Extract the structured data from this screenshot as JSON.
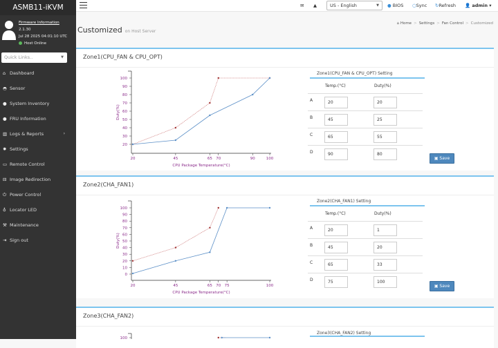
{
  "sidebar": {
    "brand": "ASMB11-iKVM",
    "firmware_link": "Firmware Information",
    "version": "2.1.30",
    "datetime": "Jul 28 2025 04:01:10 UTC",
    "status": "Host Online",
    "quick_links_placeholder": "Quick Links..",
    "items": [
      {
        "label": "Dashboard",
        "icon": "home-icon"
      },
      {
        "label": "Sensor",
        "icon": "gauge-icon"
      },
      {
        "label": "System Inventory",
        "icon": "info-icon"
      },
      {
        "label": "FRU Information",
        "icon": "info-icon"
      },
      {
        "label": "Logs & Reports",
        "icon": "chart-icon",
        "has_submenu": true
      },
      {
        "label": "Settings",
        "icon": "gear-icon"
      },
      {
        "label": "Remote Control",
        "icon": "monitor-icon"
      },
      {
        "label": "Image Redirection",
        "icon": "drive-icon"
      },
      {
        "label": "Power Control",
        "icon": "power-icon"
      },
      {
        "label": "Locator LED",
        "icon": "bulb-icon"
      },
      {
        "label": "Maintenance",
        "icon": "wrench-icon"
      },
      {
        "label": "Sign out",
        "icon": "sign-out-icon"
      }
    ]
  },
  "topbar": {
    "language": "US - English",
    "bios": "BIOS",
    "sync": "Sync",
    "refresh": "Refresh",
    "user": "admin"
  },
  "page": {
    "title": "Customized",
    "subtitle": "on Host Server",
    "breadcrumb": [
      "Home",
      "Settings",
      "Fan Control",
      "Customized"
    ]
  },
  "colors": {
    "accent": "#7cc4ee",
    "series_blue": "#5b8fc7",
    "series_red": "#a03030",
    "axis_text": "#8a2a8a",
    "save_button": "#4e88bd"
  },
  "common": {
    "temp_header": "Temp.(°C)",
    "duty_header": "Duty(%)",
    "save_label": "Save",
    "row_labels": [
      "A",
      "B",
      "C",
      "D"
    ]
  },
  "zones": [
    {
      "title": "Zone1(CPU_FAN & CPU_OPT)",
      "setting_title": "Zone1(CPU_FAN & CPU_OPT) Setting",
      "rows": [
        {
          "temp": "20",
          "duty": "20"
        },
        {
          "temp": "45",
          "duty": "25"
        },
        {
          "temp": "65",
          "duty": "55"
        },
        {
          "temp": "90",
          "duty": "80"
        }
      ]
    },
    {
      "title": "Zone2(CHA_FAN1)",
      "setting_title": "Zone2(CHA_FAN1) Setting",
      "rows": [
        {
          "temp": "20",
          "duty": "1"
        },
        {
          "temp": "45",
          "duty": "20"
        },
        {
          "temp": "65",
          "duty": "33"
        },
        {
          "temp": "75",
          "duty": "100"
        }
      ]
    },
    {
      "title": "Zone3(CHA_FAN2)",
      "setting_title": "Zone3(CHA_FAN2) Setting"
    }
  ],
  "chart_data": [
    {
      "type": "line",
      "xlabel": "CPU Package Temperature(°C)",
      "ylabel": "Duty(%)",
      "xlim": [
        20,
        100
      ],
      "ylim": [
        15,
        105
      ],
      "xticks": [
        20,
        45,
        65,
        70,
        90,
        100
      ],
      "yticks": [
        20,
        30,
        40,
        50,
        60,
        70,
        80,
        90,
        100
      ],
      "series": [
        {
          "style": "solid",
          "color": "#5b8fc7",
          "points": [
            [
              20,
              20
            ],
            [
              45,
              25
            ],
            [
              65,
              55
            ],
            [
              90,
              80
            ],
            [
              100,
              100
            ]
          ]
        },
        {
          "style": "dotted",
          "color": "#a03030",
          "points": [
            [
              20,
              20
            ],
            [
              45,
              40
            ],
            [
              65,
              70
            ],
            [
              70,
              100
            ],
            [
              100,
              100
            ]
          ]
        }
      ]
    },
    {
      "type": "line",
      "xlabel": "CPU Package Temperature(°C)",
      "ylabel": "Duty(%)",
      "xlim": [
        20,
        100
      ],
      "ylim": [
        -5,
        105
      ],
      "xticks": [
        20,
        45,
        65,
        70,
        75,
        100
      ],
      "yticks": [
        0,
        10,
        20,
        30,
        40,
        50,
        60,
        70,
        80,
        90,
        100
      ],
      "series": [
        {
          "style": "solid",
          "color": "#5b8fc7",
          "points": [
            [
              20,
              1
            ],
            [
              45,
              20
            ],
            [
              65,
              33
            ],
            [
              75,
              100
            ],
            [
              100,
              100
            ]
          ]
        },
        {
          "style": "dotted",
          "color": "#a03030",
          "points": [
            [
              20,
              20
            ],
            [
              45,
              40
            ],
            [
              65,
              70
            ],
            [
              70,
              100
            ]
          ]
        }
      ]
    },
    {
      "type": "line",
      "xlim": [
        20,
        100
      ],
      "ylim": [
        -5,
        105
      ],
      "yticks": [
        100
      ],
      "series": [
        {
          "style": "solid",
          "color": "#5b8fc7",
          "points": [
            [
              72,
              100
            ],
            [
              100,
              100
            ]
          ]
        },
        {
          "style": "dotted",
          "color": "#a03030",
          "points": [
            [
              70,
              100
            ]
          ]
        }
      ]
    }
  ]
}
